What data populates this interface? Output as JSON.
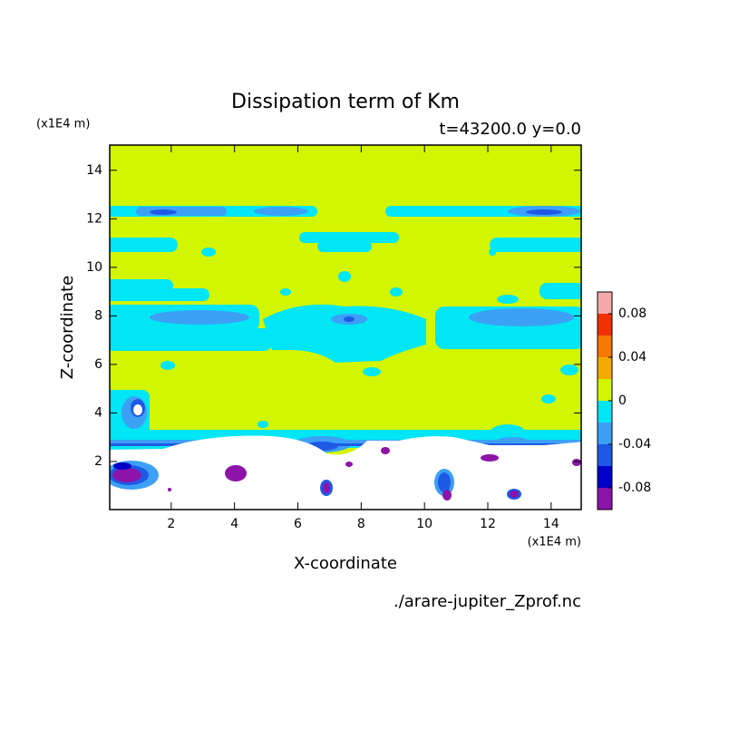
{
  "chart_data": {
    "type": "contour",
    "title": "Dissipation term of Km",
    "subtitle": "t=43200.0 y=0.0",
    "x_label": "X-coordinate",
    "y_label": "Z-coordinate",
    "x_unit": "(x1E4 m)",
    "y_unit": "(x1E4 m)",
    "source": "./arare-jupiter_Zprof.nc",
    "xlim": [
      0,
      15
    ],
    "ylim": [
      0,
      15
    ],
    "xticks": [
      2,
      4,
      6,
      8,
      10,
      12,
      14
    ],
    "yticks": [
      2,
      4,
      6,
      8,
      10,
      12,
      14
    ],
    "levels": [
      -0.1,
      -0.08,
      -0.06,
      -0.04,
      -0.02,
      0,
      0.02,
      0.04,
      0.06,
      0.08,
      0.1
    ],
    "colors": [
      "#8c14a8",
      "#0000c8",
      "#1e5ae6",
      "#3ca0f5",
      "#00e6f5",
      "#d2f500",
      "#f5aa00",
      "#f57800",
      "#f03200",
      "#f5aaaa"
    ],
    "colorbar_ticks": [
      0.08,
      0.04,
      0,
      -0.04,
      -0.08
    ]
  }
}
